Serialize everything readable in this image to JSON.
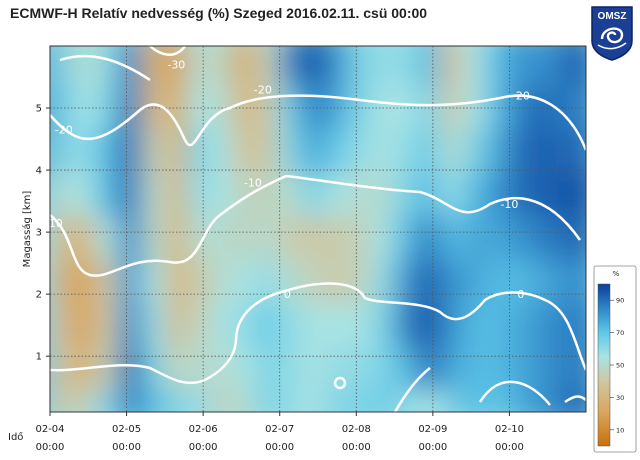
{
  "title": "ECMWF-H Relatív nedvesség (%) Szeged 2016.02.11. csü 00:00",
  "logo": {
    "text": "OMSZ",
    "icon": "omsz-logo"
  },
  "chart_data": {
    "type": "heatmap",
    "title": "ECMWF-H Relatív nedvesség (%) Szeged 2016.02.11. csü 00:00",
    "xlabel": "Idő",
    "ylabel": "Magasság [km]",
    "x_ticks": [
      {
        "date": "02-04",
        "time": "00:00"
      },
      {
        "date": "02-05",
        "time": "00:00"
      },
      {
        "date": "02-06",
        "time": "00:00"
      },
      {
        "date": "02-07",
        "time": "00:00"
      },
      {
        "date": "02-08",
        "time": "00:00"
      },
      {
        "date": "02-09",
        "time": "00:00"
      },
      {
        "date": "02-10",
        "time": "00:00"
      }
    ],
    "xlim": [
      "2016-02-04 00:00",
      "2016-02-10 23:00"
    ],
    "y_ticks": [
      1,
      2,
      3,
      4,
      5
    ],
    "ylim": [
      0.1,
      6
    ],
    "grid": true,
    "colorbar": {
      "unit": "%",
      "ticks": [
        10,
        30,
        50,
        70,
        90
      ],
      "range": [
        0,
        100
      ],
      "colors": [
        "#c8700a",
        "#d9a45a",
        "#cfc7a2",
        "#a8e3e3",
        "#5fc8e8",
        "#2f86c8",
        "#0a3f9a"
      ]
    },
    "temperature_isotherms_C": [
      {
        "label": "-30",
        "x_day": 1.65,
        "y_km": 5.7
      },
      {
        "label": "-20",
        "x_day": 0.18,
        "y_km": 4.65
      },
      {
        "label": "-20",
        "x_day": 2.78,
        "y_km": 5.3
      },
      {
        "label": "-20",
        "x_day": 6.15,
        "y_km": 5.2
      },
      {
        "label": "-10",
        "x_day": 0.05,
        "y_km": 3.15
      },
      {
        "label": "-10",
        "x_day": 2.65,
        "y_km": 3.8
      },
      {
        "label": "-10",
        "x_day": 6.0,
        "y_km": 3.45
      },
      {
        "label": "0",
        "x_day": 3.1,
        "y_km": 2.0
      },
      {
        "label": "0",
        "x_day": 6.15,
        "y_km": 2.0
      }
    ],
    "humidity_field_RH": {
      "x_day": [
        0.0,
        0.3,
        0.6,
        0.9,
        1.2,
        1.5,
        1.8,
        2.1,
        2.4,
        2.7,
        3.0,
        3.3,
        3.6,
        3.9,
        4.2,
        4.5,
        4.8,
        5.1,
        5.4,
        5.7,
        6.0,
        6.3,
        6.6,
        6.95
      ],
      "y_km": [
        0.3,
        1.0,
        1.7,
        2.4,
        3.1,
        3.8,
        4.5,
        5.2,
        5.9
      ],
      "values": [
        [
          70,
          35,
          40,
          60,
          85,
          70,
          60,
          55,
          40,
          45,
          60,
          55,
          50,
          60,
          60,
          65,
          55,
          50,
          60,
          70,
          65,
          75,
          80,
          90
        ],
        [
          75,
          35,
          20,
          40,
          92,
          60,
          40,
          45,
          45,
          50,
          60,
          55,
          50,
          55,
          55,
          60,
          70,
          88,
          75,
          70,
          70,
          75,
          80,
          85
        ],
        [
          70,
          30,
          15,
          35,
          85,
          55,
          30,
          40,
          50,
          55,
          65,
          55,
          50,
          50,
          50,
          60,
          85,
          95,
          80,
          70,
          70,
          75,
          80,
          85
        ],
        [
          65,
          25,
          15,
          35,
          80,
          50,
          25,
          35,
          45,
          50,
          55,
          45,
          40,
          35,
          40,
          55,
          80,
          92,
          80,
          75,
          70,
          70,
          75,
          80
        ],
        [
          60,
          30,
          25,
          50,
          85,
          45,
          25,
          45,
          45,
          40,
          45,
          35,
          35,
          35,
          40,
          50,
          70,
          85,
          70,
          75,
          75,
          80,
          85,
          90
        ],
        [
          70,
          45,
          50,
          70,
          90,
          45,
          25,
          55,
          50,
          40,
          40,
          45,
          60,
          50,
          45,
          45,
          60,
          70,
          55,
          70,
          80,
          90,
          92,
          95
        ],
        [
          85,
          60,
          55,
          70,
          92,
          40,
          25,
          60,
          50,
          30,
          35,
          60,
          75,
          65,
          55,
          50,
          55,
          65,
          45,
          60,
          75,
          90,
          92,
          90
        ],
        [
          88,
          65,
          50,
          60,
          90,
          30,
          20,
          50,
          45,
          25,
          35,
          65,
          85,
          75,
          60,
          50,
          50,
          60,
          35,
          50,
          70,
          85,
          90,
          85
        ],
        [
          85,
          60,
          45,
          55,
          85,
          25,
          15,
          45,
          40,
          20,
          40,
          85,
          95,
          80,
          60,
          55,
          55,
          70,
          30,
          50,
          70,
          80,
          80,
          90
        ]
      ]
    }
  }
}
